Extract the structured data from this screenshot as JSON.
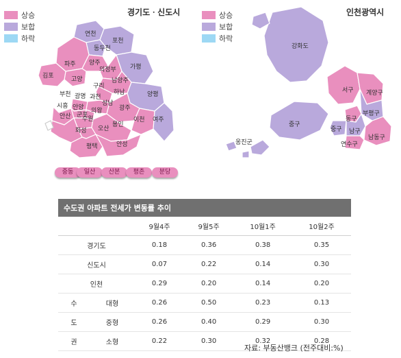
{
  "colors": {
    "rise": "#e98fbe",
    "flat": "#b9a9dc",
    "fall": "#9dd8f4"
  },
  "gyeonggi": {
    "title": "경기도ㆍ신도시",
    "legend": [
      "상승",
      "보합",
      "하락"
    ],
    "districts": [
      {
        "name": "연천",
        "status": "flat"
      },
      {
        "name": "포천",
        "status": "flat"
      },
      {
        "name": "동두천",
        "status": "flat"
      },
      {
        "name": "파주",
        "status": "rise"
      },
      {
        "name": "양주",
        "status": "rise"
      },
      {
        "name": "가평",
        "status": "flat"
      },
      {
        "name": "의정부",
        "status": "rise"
      },
      {
        "name": "고양",
        "status": "rise"
      },
      {
        "name": "김포",
        "status": "rise"
      },
      {
        "name": "구리",
        "status": "rise"
      },
      {
        "name": "남양주",
        "status": "rise"
      },
      {
        "name": "하남",
        "status": "rise"
      },
      {
        "name": "부천",
        "status": "rise"
      },
      {
        "name": "광명",
        "status": "rise"
      },
      {
        "name": "과천",
        "status": "rise"
      },
      {
        "name": "양평",
        "status": "flat"
      },
      {
        "name": "시흥",
        "status": "rise"
      },
      {
        "name": "안양",
        "status": "rise"
      },
      {
        "name": "성남",
        "status": "rise"
      },
      {
        "name": "의왕",
        "status": "rise"
      },
      {
        "name": "군포",
        "status": "rise"
      },
      {
        "name": "광주",
        "status": "rise"
      },
      {
        "name": "안산",
        "status": "rise"
      },
      {
        "name": "수원",
        "status": "rise"
      },
      {
        "name": "이천",
        "status": "rise"
      },
      {
        "name": "여주",
        "status": "flat"
      },
      {
        "name": "화성",
        "status": "rise"
      },
      {
        "name": "오산",
        "status": "rise"
      },
      {
        "name": "용인",
        "status": "rise"
      },
      {
        "name": "평택",
        "status": "rise"
      },
      {
        "name": "안성",
        "status": "rise"
      }
    ],
    "new_towns": [
      "중동",
      "일산",
      "산본",
      "평촌",
      "분당"
    ]
  },
  "incheon": {
    "title": "인천광역시",
    "legend": [
      "상승",
      "보합",
      "하락"
    ],
    "districts": [
      {
        "name": "강화도",
        "status": "flat"
      },
      {
        "name": "서구",
        "status": "rise"
      },
      {
        "name": "계양구",
        "status": "rise"
      },
      {
        "name": "부평구",
        "status": "flat"
      },
      {
        "name": "동구",
        "status": "rise"
      },
      {
        "name": "중구",
        "status": "flat"
      },
      {
        "name": "남구",
        "status": "flat"
      },
      {
        "name": "남동구",
        "status": "rise"
      },
      {
        "name": "연수구",
        "status": "rise"
      },
      {
        "name": "옹진군",
        "status": "flat"
      }
    ]
  },
  "table": {
    "title": "수도권 아파트 전세가 변동률 추이",
    "columns": [
      "9월4주",
      "9월5주",
      "10월1주",
      "10월2주"
    ],
    "rows": [
      {
        "label": "경기도",
        "values": [
          "0.18",
          "0.36",
          "0.38",
          "0.35"
        ]
      },
      {
        "label": "신도시",
        "values": [
          "0.07",
          "0.22",
          "0.14",
          "0.30"
        ]
      },
      {
        "label": "인천",
        "values": [
          "0.29",
          "0.20",
          "0.14",
          "0.20"
        ]
      }
    ],
    "group": {
      "chars": [
        "수",
        "도",
        "권"
      ],
      "rows": [
        {
          "label": "대형",
          "values": [
            "0.26",
            "0.50",
            "0.23",
            "0.13"
          ]
        },
        {
          "label": "중형",
          "values": [
            "0.26",
            "0.40",
            "0.29",
            "0.30"
          ]
        },
        {
          "label": "소형",
          "values": [
            "0.22",
            "0.30",
            "0.32",
            "0.28"
          ]
        }
      ]
    },
    "source": "자료: 부동산뱅크 (전주대비:%)"
  }
}
